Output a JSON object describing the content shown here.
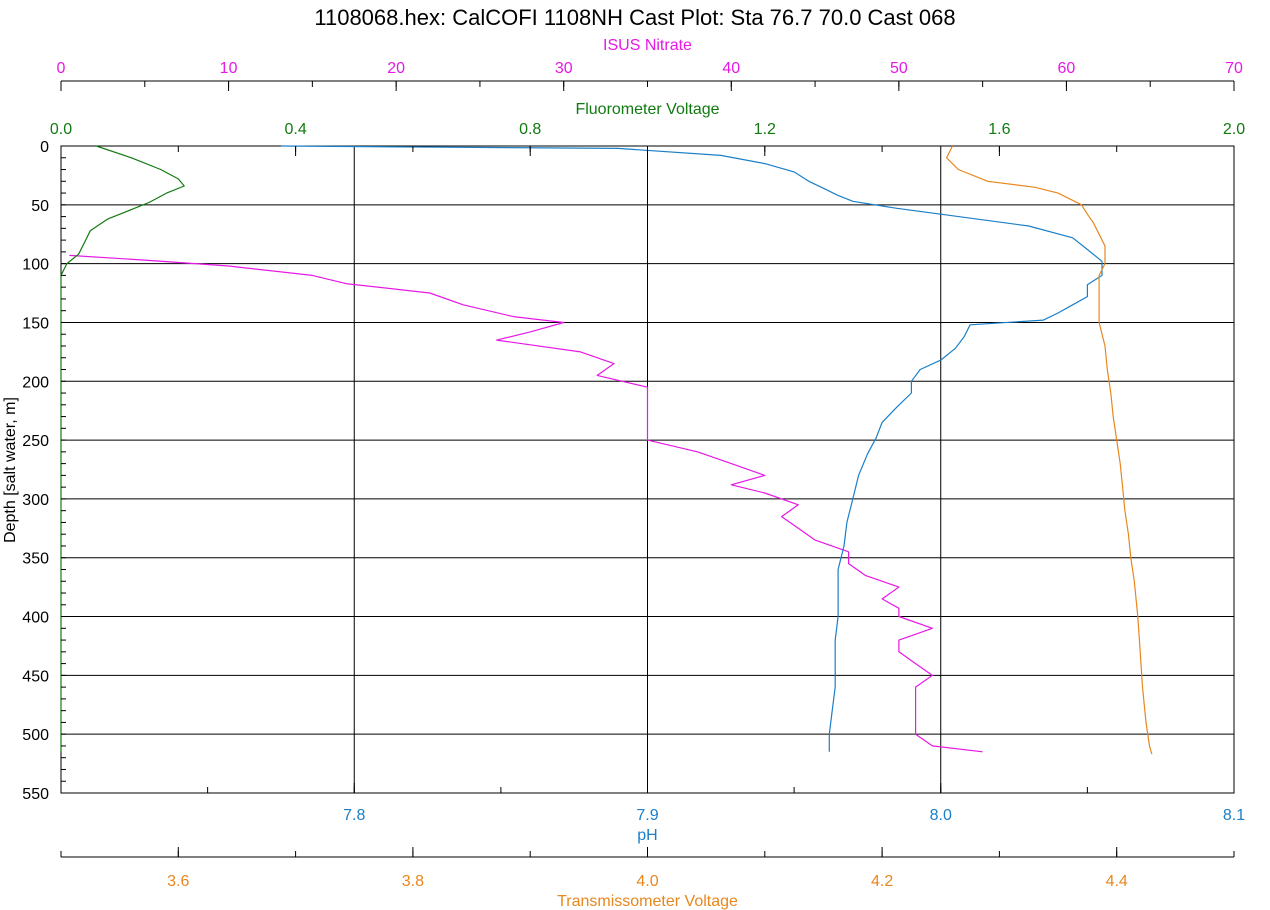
{
  "chart_data": {
    "type": "line",
    "title": "1108068.hex: CalCOFI 1108NH Cast Plot: Sta 76.7 70.0 Cast 068",
    "ylabel": "Depth [salt water, m]",
    "ylim": [
      0,
      550
    ],
    "y_ticks": [
      0,
      50,
      100,
      150,
      200,
      250,
      300,
      350,
      400,
      450,
      500,
      550
    ],
    "grid": true,
    "axes": {
      "nitrate": {
        "label": "ISUS Nitrate",
        "color": "#e619e6",
        "position": "top-outer",
        "range": [
          0,
          70
        ],
        "ticks": [
          0,
          10,
          20,
          30,
          40,
          50,
          60,
          70
        ]
      },
      "fluor": {
        "label": "Fluorometer Voltage",
        "color": "#117a11",
        "position": "top-inner",
        "range": [
          0.0,
          2.0
        ],
        "ticks": [
          "0.0",
          "0.4",
          "0.8",
          "1.2",
          "1.6",
          "2.0"
        ]
      },
      "ph": {
        "label": "pH",
        "color": "#1a7fc8",
        "position": "bottom-inner",
        "range": [
          7.7,
          8.1
        ],
        "ticks": [
          "7.8",
          "7.9",
          "8.0",
          "8.1"
        ]
      },
      "trans": {
        "label": "Transmissometer Voltage",
        "color": "#e8871e",
        "position": "bottom-outer",
        "range": [
          3.5,
          4.5
        ],
        "ticks": [
          "3.6",
          "3.8",
          "4.0",
          "4.2",
          "4.4"
        ]
      }
    },
    "series": [
      {
        "name": "ISUS Nitrate",
        "axis": "nitrate",
        "points": [
          [
            0.5,
            93
          ],
          [
            5,
            97
          ],
          [
            10,
            102
          ],
          [
            15,
            110
          ],
          [
            17,
            117
          ],
          [
            22,
            125
          ],
          [
            24,
            135
          ],
          [
            27,
            145
          ],
          [
            30,
            150
          ],
          [
            28,
            158
          ],
          [
            26,
            165
          ],
          [
            31,
            175
          ],
          [
            33,
            185
          ],
          [
            32,
            195
          ],
          [
            35,
            205
          ],
          [
            35,
            215
          ],
          [
            35,
            228
          ],
          [
            35,
            240
          ],
          [
            35,
            250
          ],
          [
            38,
            260
          ],
          [
            40,
            270
          ],
          [
            42,
            280
          ],
          [
            40,
            288
          ],
          [
            42,
            295
          ],
          [
            44,
            305
          ],
          [
            43,
            315
          ],
          [
            44,
            325
          ],
          [
            45,
            335
          ],
          [
            47,
            345
          ],
          [
            47,
            355
          ],
          [
            48,
            365
          ],
          [
            50,
            375
          ],
          [
            49,
            385
          ],
          [
            50,
            393
          ],
          [
            50,
            400
          ],
          [
            52,
            410
          ],
          [
            50,
            420
          ],
          [
            50,
            430
          ],
          [
            51,
            440
          ],
          [
            52,
            450
          ],
          [
            51,
            460
          ],
          [
            51,
            470
          ],
          [
            51,
            480
          ],
          [
            51,
            490
          ],
          [
            51,
            500
          ],
          [
            52,
            510
          ],
          [
            55,
            515
          ]
        ]
      },
      {
        "name": "Fluorometer Voltage",
        "axis": "fluor",
        "points": [
          [
            0.06,
            0
          ],
          [
            0.12,
            10
          ],
          [
            0.17,
            20
          ],
          [
            0.2,
            28
          ],
          [
            0.21,
            34
          ],
          [
            0.18,
            40
          ],
          [
            0.15,
            48
          ],
          [
            0.11,
            56
          ],
          [
            0.08,
            62
          ],
          [
            0.05,
            72
          ],
          [
            0.04,
            82
          ],
          [
            0.03,
            92
          ],
          [
            0.01,
            100
          ],
          [
            0.0,
            110
          ],
          [
            0.0,
            150
          ],
          [
            0.0,
            250
          ],
          [
            0.0,
            350
          ],
          [
            0.0,
            450
          ],
          [
            0.0,
            515
          ]
        ]
      },
      {
        "name": "pH",
        "axis": "ph",
        "points": [
          [
            7.775,
            0
          ],
          [
            7.83,
            1
          ],
          [
            7.89,
            2
          ],
          [
            7.925,
            8
          ],
          [
            7.94,
            15
          ],
          [
            7.95,
            22
          ],
          [
            7.955,
            30
          ],
          [
            7.96,
            36
          ],
          [
            7.965,
            42
          ],
          [
            7.97,
            47
          ],
          [
            7.985,
            53
          ],
          [
            8.0,
            58
          ],
          [
            8.03,
            68
          ],
          [
            8.045,
            78
          ],
          [
            8.05,
            88
          ],
          [
            8.055,
            98
          ],
          [
            8.055,
            110
          ],
          [
            8.05,
            118
          ],
          [
            8.05,
            128
          ],
          [
            8.045,
            135
          ],
          [
            8.04,
            142
          ],
          [
            8.035,
            148
          ],
          [
            8.01,
            152
          ],
          [
            8.008,
            162
          ],
          [
            8.005,
            172
          ],
          [
            8.0,
            182
          ],
          [
            7.993,
            190
          ],
          [
            7.99,
            200
          ],
          [
            7.99,
            210
          ],
          [
            7.985,
            222
          ],
          [
            7.98,
            235
          ],
          [
            7.978,
            248
          ],
          [
            7.975,
            262
          ],
          [
            7.972,
            280
          ],
          [
            7.97,
            300
          ],
          [
            7.968,
            320
          ],
          [
            7.967,
            340
          ],
          [
            7.965,
            360
          ],
          [
            7.965,
            380
          ],
          [
            7.965,
            400
          ],
          [
            7.964,
            420
          ],
          [
            7.964,
            440
          ],
          [
            7.964,
            460
          ],
          [
            7.963,
            480
          ],
          [
            7.962,
            500
          ],
          [
            7.962,
            515
          ]
        ]
      },
      {
        "name": "Transmissometer Voltage",
        "axis": "trans",
        "points": [
          [
            4.26,
            0
          ],
          [
            4.255,
            10
          ],
          [
            4.265,
            20
          ],
          [
            4.29,
            30
          ],
          [
            4.33,
            35
          ],
          [
            4.35,
            40
          ],
          [
            4.36,
            45
          ],
          [
            4.37,
            50
          ],
          [
            4.375,
            58
          ],
          [
            4.38,
            65
          ],
          [
            4.385,
            75
          ],
          [
            4.39,
            85
          ],
          [
            4.39,
            100
          ],
          [
            4.385,
            110
          ],
          [
            4.385,
            125
          ],
          [
            4.385,
            140
          ],
          [
            4.385,
            150
          ],
          [
            4.39,
            170
          ],
          [
            4.392,
            190
          ],
          [
            4.395,
            210
          ],
          [
            4.397,
            230
          ],
          [
            4.4,
            250
          ],
          [
            4.403,
            270
          ],
          [
            4.405,
            290
          ],
          [
            4.407,
            310
          ],
          [
            4.41,
            330
          ],
          [
            4.412,
            350
          ],
          [
            4.415,
            370
          ],
          [
            4.418,
            400
          ],
          [
            4.42,
            430
          ],
          [
            4.422,
            460
          ],
          [
            4.425,
            490
          ],
          [
            4.428,
            510
          ],
          [
            4.43,
            517
          ]
        ]
      }
    ]
  }
}
